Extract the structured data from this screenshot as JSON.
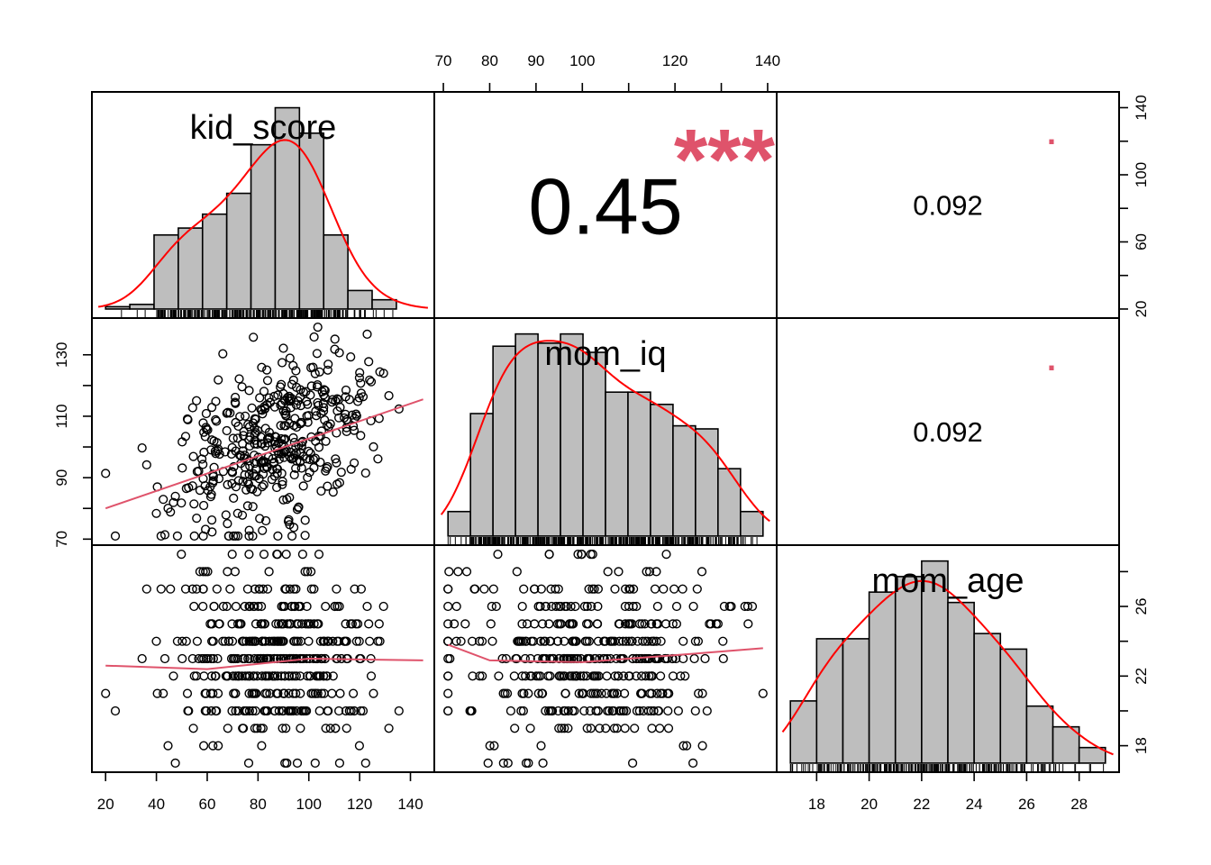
{
  "chart_data": {
    "type": "scatter",
    "variables": [
      "kid_score",
      "mom_iq",
      "mom_age"
    ],
    "ranges": {
      "kid_score": [
        20,
        144
      ],
      "mom_iq": [
        71,
        139
      ],
      "mom_age": [
        17,
        29
      ]
    },
    "ticks": {
      "kid_score": [
        20,
        40,
        60,
        80,
        100,
        120,
        140
      ],
      "mom_iq_top": [
        70,
        80,
        90,
        100,
        120,
        140
      ],
      "mom_iq_left": [
        70,
        90,
        110,
        130
      ],
      "kid_score_right": [
        20,
        60,
        100,
        140
      ],
      "mom_age_bottom": [
        18,
        20,
        22,
        24,
        26,
        28
      ],
      "mom_age_right": [
        18,
        22,
        26
      ]
    },
    "correlations": [
      {
        "pair": [
          "kid_score",
          "mom_iq"
        ],
        "value": "0.45",
        "stars": "***"
      },
      {
        "pair": [
          "kid_score",
          "mom_age"
        ],
        "value": "0.092",
        "stars": "."
      },
      {
        "pair": [
          "mom_iq",
          "mom_age"
        ],
        "value": "0.092",
        "stars": "."
      }
    ],
    "histograms": {
      "kid_score": {
        "breaks": [
          20,
          30,
          40,
          50,
          60,
          70,
          80,
          90,
          100,
          110,
          120,
          130,
          140,
          150
        ],
        "counts": [
          1,
          2,
          32,
          35,
          41,
          50,
          71,
          87,
          76,
          32,
          8,
          4,
          0
        ]
      },
      "mom_iq": {
        "breaks": [
          70,
          75,
          80,
          85,
          90,
          95,
          100,
          105,
          110,
          115,
          120,
          125,
          130,
          135,
          140
        ],
        "counts": [
          8,
          40,
          62,
          66,
          63,
          66,
          60,
          47,
          47,
          43,
          36,
          35,
          22,
          8
        ]
      },
      "mom_age": {
        "breaks": [
          17,
          18,
          19,
          20,
          21,
          22,
          23,
          24,
          25,
          26,
          27,
          28,
          29
        ],
        "counts": [
          12,
          24,
          24,
          33,
          36,
          39,
          31,
          25,
          22,
          11,
          7,
          3
        ]
      }
    },
    "fit_lines": {
      "mom_iq_vs_kid_score": [
        [
          20,
          80
        ],
        [
          145,
          115.5
        ]
      ],
      "mom_age_vs_kid_score": [
        [
          20,
          22.6
        ],
        [
          60,
          22.4
        ],
        [
          100,
          23.0
        ],
        [
          145,
          22.9
        ]
      ],
      "mom_age_vs_mom_iq": [
        [
          71,
          23.8
        ],
        [
          80,
          22.9
        ],
        [
          100,
          22.8
        ],
        [
          120,
          23.2
        ],
        [
          139,
          23.6
        ]
      ]
    },
    "grid": false
  }
}
